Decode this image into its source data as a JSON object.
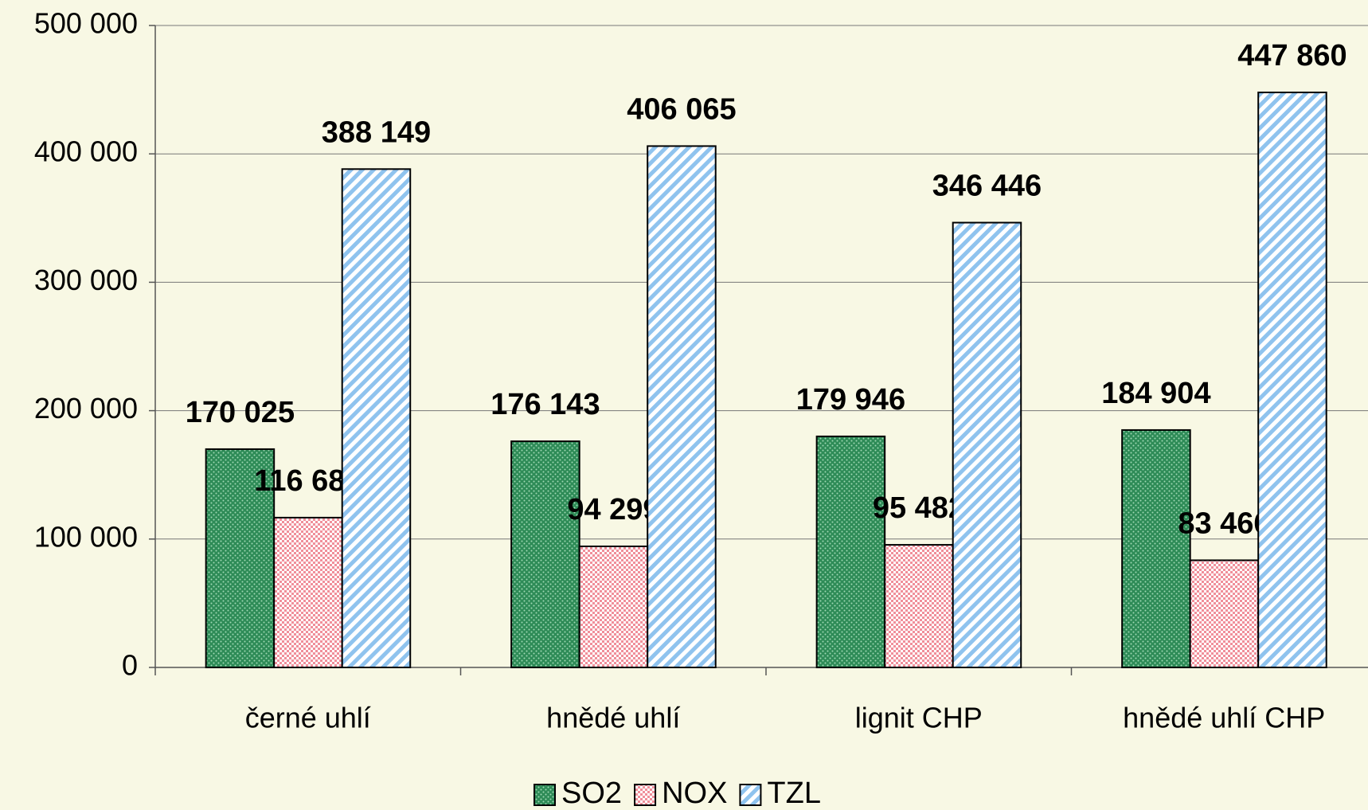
{
  "chart_data": {
    "type": "bar",
    "categories": [
      "černé uhlí",
      "hnědé uhlí",
      "lignit CHP",
      "hnědé uhlí CHP"
    ],
    "series": [
      {
        "name": "SO2",
        "color": "#2e8b57",
        "values": [
          170025,
          176143,
          179946,
          184904
        ],
        "value_labels": [
          "170 025",
          "176 143",
          "179 946",
          "184 904"
        ]
      },
      {
        "name": "NOX",
        "color": "#f08f9a",
        "values": [
          116681,
          94299,
          95482,
          83466
        ],
        "value_labels": [
          "116 681",
          "94 299",
          "95 482",
          "83 466"
        ]
      },
      {
        "name": "TZL",
        "color": "#8fc3ee",
        "values": [
          388149,
          406065,
          346446,
          447860
        ],
        "value_labels": [
          "388 149",
          "406 065",
          "346 446",
          "447 860"
        ]
      }
    ],
    "ylim": [
      0,
      500000
    ],
    "yticks": [
      0,
      {
        "value": 100000,
        "label": "100 000"
      },
      {
        "value": 200000,
        "label": "200 000"
      },
      {
        "value": 300000,
        "label": "300 000"
      },
      {
        "value": 400000,
        "label": "400 000"
      },
      {
        "value": 500000,
        "label": "500 000"
      }
    ],
    "grid": true,
    "legend": "bottom"
  }
}
